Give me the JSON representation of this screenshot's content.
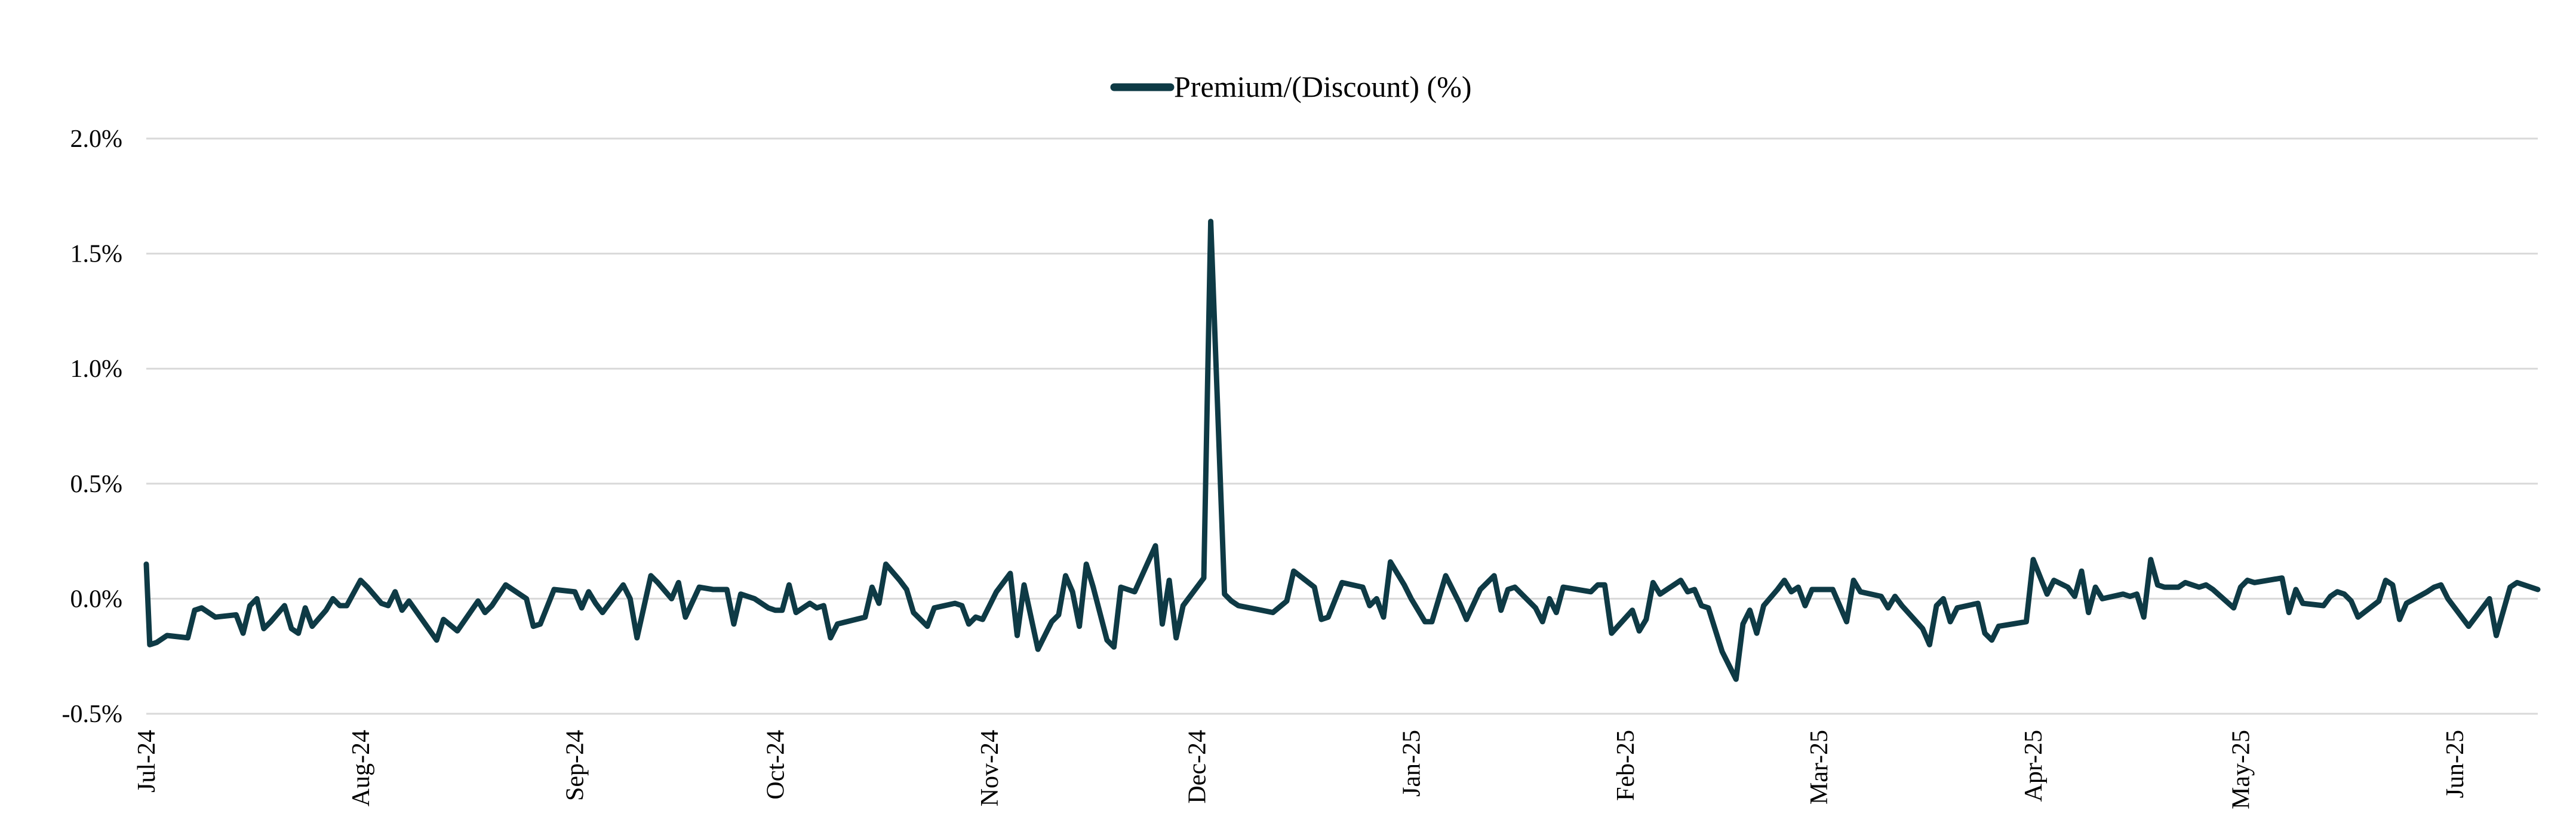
{
  "chart_data": {
    "type": "line",
    "title": "",
    "xlabel": "",
    "ylabel": "",
    "legend": {
      "position": "top-center",
      "entries": [
        "Premium/(Discount) (%)"
      ]
    },
    "grid": "horizontal",
    "ylim": [
      -0.5,
      2.0
    ],
    "yticks": [
      -0.5,
      0.0,
      0.5,
      1.0,
      1.5,
      2.0
    ],
    "ytick_labels": [
      "-0.5%",
      "0.0%",
      "0.5%",
      "1.0%",
      "1.5%",
      "2.0%"
    ],
    "xlim": [
      0,
      346
    ],
    "xticks": [
      0,
      31,
      62,
      91,
      122,
      152,
      183,
      214,
      242,
      273,
      303,
      334
    ],
    "xtick_labels": [
      "Jul-24",
      "Aug-24",
      "Sep-24",
      "Oct-24",
      "Nov-24",
      "Dec-24",
      "Jan-25",
      "Feb-25",
      "Mar-25",
      "Apr-25",
      "May-25",
      "Jun-25"
    ],
    "x_unit": "days since 2024-07-01",
    "series": [
      {
        "name": "Premium/(Discount) (%)",
        "color": "#0e3a45",
        "points": [
          [
            0,
            0.15
          ],
          [
            0.5,
            -0.2
          ],
          [
            1.5,
            -0.19
          ],
          [
            3,
            -0.16
          ],
          [
            6,
            -0.17
          ],
          [
            7,
            -0.05
          ],
          [
            8,
            -0.04
          ],
          [
            10,
            -0.08
          ],
          [
            13,
            -0.07
          ],
          [
            14,
            -0.15
          ],
          [
            15,
            -0.03
          ],
          [
            16,
            0.0
          ],
          [
            17,
            -0.13
          ],
          [
            18,
            -0.1
          ],
          [
            20,
            -0.03
          ],
          [
            21,
            -0.13
          ],
          [
            22,
            -0.15
          ],
          [
            23,
            -0.04
          ],
          [
            24,
            -0.12
          ],
          [
            26,
            -0.05
          ],
          [
            27,
            0.0
          ],
          [
            28,
            -0.03
          ],
          [
            29,
            -0.03
          ],
          [
            31,
            0.08
          ],
          [
            32,
            0.05
          ],
          [
            34,
            -0.02
          ],
          [
            35,
            -0.03
          ],
          [
            36,
            0.03
          ],
          [
            37,
            -0.05
          ],
          [
            38,
            -0.01
          ],
          [
            42,
            -0.18
          ],
          [
            43,
            -0.09
          ],
          [
            45,
            -0.14
          ],
          [
            48,
            -0.01
          ],
          [
            49,
            -0.06
          ],
          [
            50,
            -0.03
          ],
          [
            52,
            0.06
          ],
          [
            55,
            0.0
          ],
          [
            56,
            -0.12
          ],
          [
            57,
            -0.11
          ],
          [
            59,
            0.04
          ],
          [
            62,
            0.03
          ],
          [
            63,
            -0.04
          ],
          [
            64,
            0.03
          ],
          [
            65,
            -0.02
          ],
          [
            66,
            -0.06
          ],
          [
            69,
            0.06
          ],
          [
            70,
            0.0
          ],
          [
            71,
            -0.17
          ],
          [
            73,
            0.1
          ],
          [
            74,
            0.07
          ],
          [
            76,
            0.0
          ],
          [
            77,
            0.07
          ],
          [
            78,
            -0.08
          ],
          [
            80,
            0.05
          ],
          [
            82,
            0.04
          ],
          [
            84,
            0.04
          ],
          [
            85,
            -0.11
          ],
          [
            86,
            0.02
          ],
          [
            88,
            0.0
          ],
          [
            90,
            -0.04
          ],
          [
            91,
            -0.05
          ],
          [
            92,
            -0.05
          ],
          [
            93,
            0.06
          ],
          [
            94,
            -0.06
          ],
          [
            96,
            -0.02
          ],
          [
            97,
            -0.04
          ],
          [
            98,
            -0.03
          ],
          [
            99,
            -0.17
          ],
          [
            100,
            -0.11
          ],
          [
            104,
            -0.08
          ],
          [
            105,
            0.05
          ],
          [
            106,
            -0.02
          ],
          [
            107,
            0.15
          ],
          [
            109,
            0.08
          ],
          [
            110,
            0.04
          ],
          [
            111,
            -0.06
          ],
          [
            113,
            -0.12
          ],
          [
            114,
            -0.04
          ],
          [
            117,
            -0.02
          ],
          [
            118,
            -0.03
          ],
          [
            119,
            -0.11
          ],
          [
            120,
            -0.08
          ],
          [
            121,
            -0.09
          ],
          [
            123,
            0.03
          ],
          [
            125,
            0.11
          ],
          [
            126,
            -0.16
          ],
          [
            127,
            0.06
          ],
          [
            129,
            -0.22
          ],
          [
            131,
            -0.1
          ],
          [
            132,
            -0.07
          ],
          [
            133,
            0.1
          ],
          [
            134,
            0.03
          ],
          [
            135,
            -0.12
          ],
          [
            136,
            0.15
          ],
          [
            137,
            0.05
          ],
          [
            139,
            -0.18
          ],
          [
            140,
            -0.21
          ],
          [
            141,
            0.05
          ],
          [
            142,
            0.04
          ],
          [
            143,
            0.03
          ],
          [
            146,
            0.23
          ],
          [
            147,
            -0.11
          ],
          [
            148,
            0.08
          ],
          [
            149,
            -0.17
          ],
          [
            150,
            -0.03
          ],
          [
            153,
            0.09
          ],
          [
            154,
            1.64
          ],
          [
            156,
            0.02
          ],
          [
            157,
            -0.01
          ],
          [
            158,
            -0.03
          ],
          [
            163,
            -0.06
          ],
          [
            165,
            -0.01
          ],
          [
            166,
            0.12
          ],
          [
            169,
            0.05
          ],
          [
            170,
            -0.09
          ],
          [
            171,
            -0.08
          ],
          [
            173,
            0.07
          ],
          [
            176,
            0.05
          ],
          [
            177,
            -0.03
          ],
          [
            178,
            0.0
          ],
          [
            179,
            -0.08
          ],
          [
            180,
            0.16
          ],
          [
            182,
            0.06
          ],
          [
            183,
            0.0
          ],
          [
            185,
            -0.1
          ],
          [
            186,
            -0.1
          ],
          [
            188,
            0.1
          ],
          [
            190,
            -0.02
          ],
          [
            191,
            -0.09
          ],
          [
            193,
            0.04
          ],
          [
            195,
            0.1
          ],
          [
            196,
            -0.05
          ],
          [
            197,
            0.04
          ],
          [
            198,
            0.05
          ],
          [
            201,
            -0.04
          ],
          [
            202,
            -0.1
          ],
          [
            203,
            0.0
          ],
          [
            204,
            -0.06
          ],
          [
            205,
            0.05
          ],
          [
            209,
            0.03
          ],
          [
            210,
            0.06
          ],
          [
            211,
            0.06
          ],
          [
            212,
            -0.15
          ],
          [
            215,
            -0.05
          ],
          [
            216,
            -0.14
          ],
          [
            217,
            -0.09
          ],
          [
            218,
            0.07
          ],
          [
            219,
            0.02
          ],
          [
            222,
            0.08
          ],
          [
            223,
            0.03
          ],
          [
            224,
            0.04
          ],
          [
            225,
            -0.03
          ],
          [
            226,
            -0.04
          ],
          [
            228,
            -0.23
          ],
          [
            230,
            -0.35
          ],
          [
            231,
            -0.11
          ],
          [
            232,
            -0.05
          ],
          [
            233,
            -0.15
          ],
          [
            234,
            -0.03
          ],
          [
            236,
            0.04
          ],
          [
            237,
            0.08
          ],
          [
            238,
            0.03
          ],
          [
            239,
            0.05
          ],
          [
            240,
            -0.03
          ],
          [
            241,
            0.04
          ],
          [
            242,
            0.04
          ],
          [
            244,
            0.04
          ],
          [
            246,
            -0.1
          ],
          [
            247,
            0.08
          ],
          [
            248,
            0.03
          ],
          [
            251,
            0.01
          ],
          [
            252,
            -0.04
          ],
          [
            253,
            0.01
          ],
          [
            254,
            -0.03
          ],
          [
            257,
            -0.13
          ],
          [
            258,
            -0.2
          ],
          [
            259,
            -0.03
          ],
          [
            260,
            0.0
          ],
          [
            261,
            -0.1
          ],
          [
            262,
            -0.04
          ],
          [
            265,
            -0.02
          ],
          [
            266,
            -0.15
          ],
          [
            267,
            -0.18
          ],
          [
            268,
            -0.12
          ],
          [
            272,
            -0.1
          ],
          [
            273,
            0.17
          ],
          [
            275,
            0.02
          ],
          [
            276,
            0.08
          ],
          [
            278,
            0.05
          ],
          [
            279,
            0.01
          ],
          [
            280,
            0.12
          ],
          [
            281,
            -0.06
          ],
          [
            282,
            0.05
          ],
          [
            283,
            0.0
          ],
          [
            286,
            0.02
          ],
          [
            287,
            0.01
          ],
          [
            288,
            0.02
          ],
          [
            289,
            -0.08
          ],
          [
            290,
            0.17
          ],
          [
            291,
            0.06
          ],
          [
            292,
            0.05
          ],
          [
            294,
            0.05
          ],
          [
            295,
            0.07
          ],
          [
            296,
            0.06
          ],
          [
            297,
            0.05
          ],
          [
            298,
            0.06
          ],
          [
            299,
            0.04
          ],
          [
            302,
            -0.04
          ],
          [
            303,
            0.05
          ],
          [
            304,
            0.08
          ],
          [
            305,
            0.07
          ],
          [
            309,
            0.09
          ],
          [
            310,
            -0.06
          ],
          [
            311,
            0.04
          ],
          [
            312,
            -0.02
          ],
          [
            315,
            -0.03
          ],
          [
            316,
            0.01
          ],
          [
            317,
            0.03
          ],
          [
            318,
            0.02
          ],
          [
            319,
            -0.01
          ],
          [
            320,
            -0.08
          ],
          [
            323,
            -0.01
          ],
          [
            324,
            0.08
          ],
          [
            325,
            0.06
          ],
          [
            326,
            -0.09
          ],
          [
            327,
            -0.02
          ],
          [
            330,
            0.03
          ],
          [
            331,
            0.05
          ],
          [
            332,
            0.06
          ],
          [
            333,
            0.0
          ],
          [
            336,
            -0.12
          ],
          [
            339,
            0.0
          ],
          [
            340,
            -0.16
          ],
          [
            342,
            0.05
          ],
          [
            343,
            0.07
          ],
          [
            346,
            0.04
          ]
        ]
      }
    ]
  }
}
